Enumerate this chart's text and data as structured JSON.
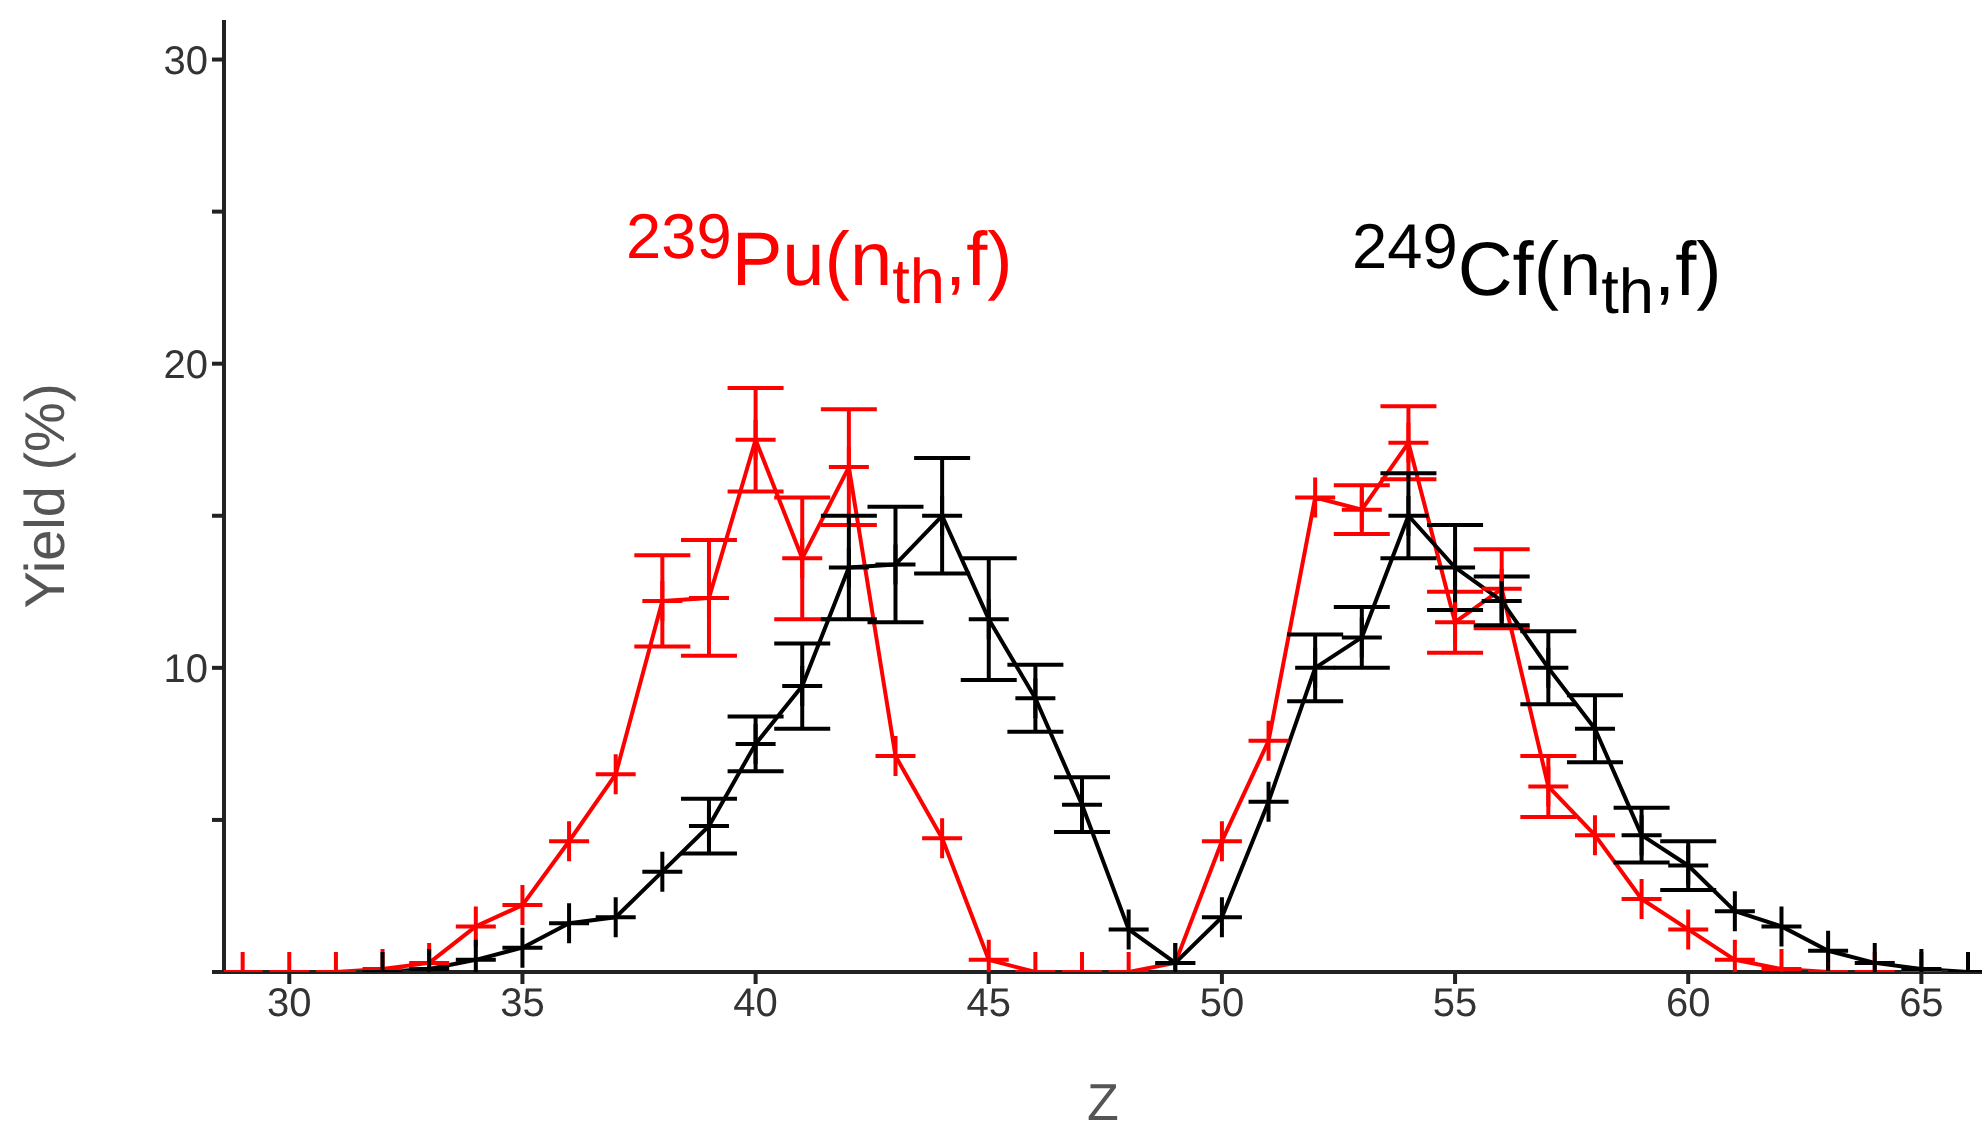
{
  "chart_data": {
    "type": "line",
    "xlabel": "Z",
    "ylabel": "Yield (%)",
    "xlim": [
      28.6,
      66.3
    ],
    "xticks": [
      30,
      35,
      40,
      45,
      50,
      55,
      60,
      65
    ],
    "ylim": [
      0,
      31.3
    ],
    "yticks": [
      {
        "value": 0,
        "label": null
      },
      {
        "value": 5,
        "label": null
      },
      10,
      {
        "value": 15,
        "label": null
      },
      20,
      {
        "value": 25,
        "label": null
      },
      30
    ],
    "legend": false,
    "marker": "cross",
    "line_style": "solid",
    "series": [
      {
        "name": "$^{239}$Pu(n$_{th}$,f)",
        "color": "#ff0000",
        "x": [
          29,
          30,
          31,
          32,
          33,
          34,
          35,
          36,
          37,
          38,
          39,
          40,
          41,
          42,
          43,
          44,
          45,
          46,
          47,
          48,
          49,
          50,
          51,
          52,
          53,
          54,
          55,
          56,
          57,
          58,
          59,
          60,
          61,
          62,
          63,
          64,
          65
        ],
        "values": [
          0,
          0,
          0,
          0.1,
          0.3,
          1.5,
          2.2,
          4.3,
          6.5,
          12.2,
          12.3,
          17.5,
          13.6,
          16.6,
          7.1,
          4.4,
          0.4,
          0,
          0,
          0,
          0.3,
          4.3,
          7.6,
          15.6,
          15.2,
          17.4,
          11.5,
          12.6,
          6.1,
          4.5,
          2.4,
          1.4,
          0.4,
          0.1,
          0,
          0,
          0
        ],
        "errors": [
          null,
          null,
          null,
          null,
          null,
          null,
          null,
          null,
          null,
          1.5,
          1.9,
          1.7,
          2.0,
          1.9,
          null,
          null,
          null,
          null,
          null,
          null,
          null,
          null,
          null,
          null,
          0.8,
          1.2,
          1.0,
          1.3,
          1.0,
          null,
          null,
          null,
          null,
          null,
          null,
          null,
          null
        ]
      },
      {
        "name": "$^{249}$Cf(n$_{th}$,f)",
        "color": "#000000",
        "x": [
          32,
          33,
          34,
          35,
          36,
          37,
          38,
          39,
          40,
          41,
          42,
          43,
          44,
          45,
          46,
          47,
          48,
          49,
          50,
          51,
          52,
          53,
          54,
          55,
          56,
          57,
          58,
          59,
          60,
          61,
          62,
          63,
          64,
          65,
          66
        ],
        "values": [
          0,
          0.1,
          0.4,
          0.8,
          1.6,
          1.8,
          3.3,
          4.8,
          7.5,
          9.4,
          13.3,
          13.4,
          15.0,
          11.6,
          9.0,
          5.5,
          1.4,
          0.3,
          1.8,
          5.6,
          10.0,
          11.0,
          15.0,
          13.3,
          12.2,
          10.0,
          8.0,
          4.5,
          3.5,
          2.0,
          1.5,
          0.7,
          0.3,
          0.1,
          0
        ],
        "errors": [
          null,
          null,
          null,
          null,
          null,
          null,
          null,
          0.9,
          0.9,
          1.4,
          1.7,
          1.9,
          1.9,
          2.0,
          1.1,
          0.9,
          null,
          null,
          null,
          null,
          1.1,
          1.0,
          1.4,
          1.4,
          0.8,
          1.2,
          1.1,
          0.9,
          0.8,
          null,
          null,
          null,
          null,
          null,
          null
        ]
      }
    ]
  }
}
